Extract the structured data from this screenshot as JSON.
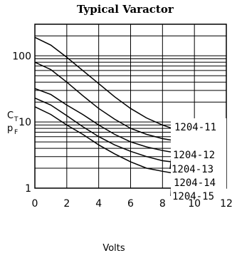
{
  "chart_data": {
    "type": "line",
    "title": "Typical Varactor",
    "xlabel": "Volts",
    "ylabel": "C",
    "ylabel_sub": "T",
    "ylabel2": "p",
    "ylabel2_sub": "F",
    "xlim": [
      0,
      12
    ],
    "ylim": [
      1,
      300
    ],
    "y_scale": "log",
    "grid": true,
    "x_ticks": [
      0,
      2,
      4,
      6,
      8,
      10,
      12
    ],
    "y_ticks": [
      1,
      10,
      100
    ],
    "x_tick_labels": [
      "0",
      "2",
      "4",
      "6",
      "8",
      "10",
      "12"
    ],
    "y_tick_labels": [
      "1",
      "10",
      "100"
    ],
    "series": [
      {
        "name": "1204-11",
        "x": [
          0,
          1,
          2,
          3,
          4,
          5,
          6,
          7,
          8,
          8.6
        ],
        "y": [
          190,
          145,
          95,
          60,
          38,
          24,
          16,
          11.5,
          9,
          8
        ]
      },
      {
        "name": "1204-12",
        "x": [
          0,
          1,
          2,
          3,
          4,
          5,
          6,
          7,
          8,
          8.6
        ],
        "y": [
          80,
          62,
          40,
          25,
          16,
          11,
          8,
          6.5,
          5.6,
          5.3
        ]
      },
      {
        "name": "1204-13",
        "x": [
          0,
          1,
          2,
          3,
          4,
          5,
          6,
          7,
          8,
          8.6
        ],
        "y": [
          32,
          26,
          18,
          13,
          9,
          6.5,
          5,
          4.2,
          3.7,
          3.5
        ]
      },
      {
        "name": "1204-14",
        "x": [
          0,
          1,
          2,
          3,
          4,
          5,
          6,
          7,
          8,
          8.6
        ],
        "y": [
          23,
          18,
          12.5,
          8.5,
          6,
          4.5,
          3.6,
          3,
          2.6,
          2.5
        ]
      },
      {
        "name": "1204-15",
        "x": [
          0,
          1,
          2,
          3,
          4,
          5,
          6,
          7,
          8,
          8.6
        ],
        "y": [
          17,
          13,
          9,
          6.5,
          4.5,
          3.3,
          2.5,
          2,
          1.8,
          1.7
        ]
      }
    ]
  }
}
